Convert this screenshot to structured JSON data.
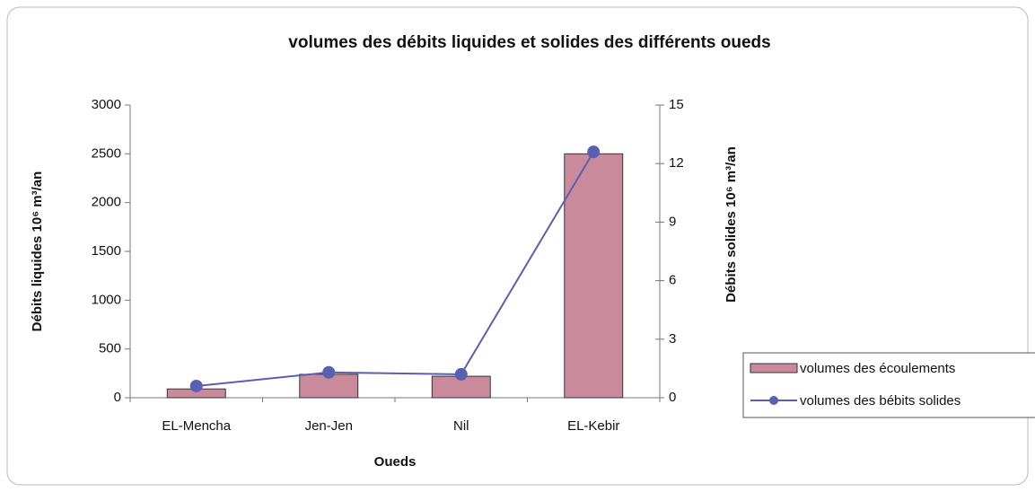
{
  "chart_data": {
    "type": "bar",
    "title": "volumes des débits liquides et solides des différents oueds",
    "xlabel": "Oueds",
    "ylabel": "Débits liquides 10⁶ m³/an",
    "y2label": "Débits solides 10⁶ m³/an",
    "categories": [
      "EL-Mencha",
      "Jen-Jen",
      "Nil",
      "EL-Kebir"
    ],
    "series": [
      {
        "name": "volumes des écoulements",
        "type": "bar",
        "color": "#c98b9c",
        "values": [
          90,
          240,
          220,
          2500
        ]
      },
      {
        "name": "volumes des bébits solides",
        "type": "line",
        "axis": "y2",
        "color": "#5a5fb0",
        "values": [
          0.6,
          1.3,
          1.2,
          12.6
        ]
      }
    ],
    "ylim": [
      0,
      3000
    ],
    "yticks": [
      0,
      500,
      1000,
      1500,
      2000,
      2500,
      3000
    ],
    "y2lim": [
      0,
      15
    ],
    "y2ticks": [
      0,
      3,
      6,
      9,
      12,
      15
    ],
    "grid": false,
    "legend": "right"
  }
}
